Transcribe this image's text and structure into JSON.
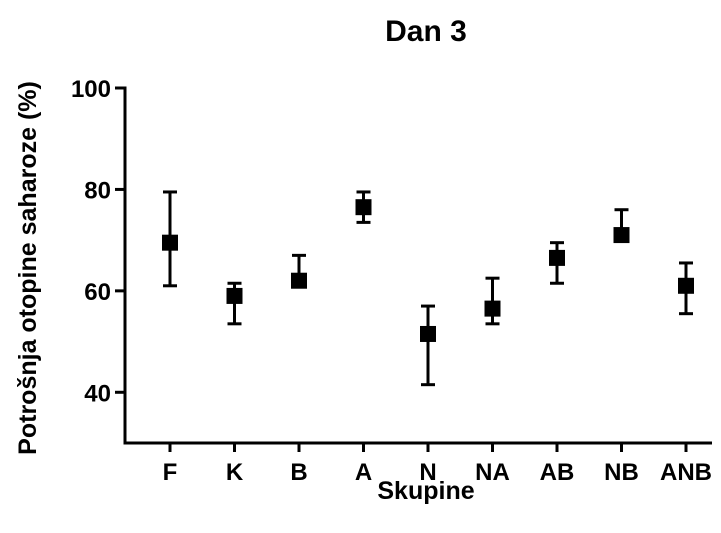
{
  "chart_data": {
    "type": "scatter",
    "title": "Dan 3",
    "xlabel": "Skupine",
    "ylabel": "Potrošnja otopine saharoze (%)",
    "categories": [
      "F",
      "K",
      "B",
      "A",
      "N",
      "NA",
      "AB",
      "NB",
      "ANB"
    ],
    "series": [
      {
        "values": [
          69.5,
          59.0,
          62.0,
          76.5,
          51.5,
          56.5,
          66.5,
          71.0,
          61.0
        ],
        "error_upper": [
          79.5,
          61.5,
          67.0,
          79.5,
          57.0,
          62.5,
          69.5,
          76.0,
          65.5
        ],
        "error_lower": [
          61.0,
          53.5,
          61.5,
          73.5,
          41.5,
          53.5,
          61.5,
          70.5,
          55.5
        ]
      }
    ],
    "ylim": [
      30,
      100
    ],
    "yticks": [
      "40",
      "60",
      "80",
      "100"
    ],
    "marker": "square",
    "grid": false,
    "color": "#000000"
  }
}
